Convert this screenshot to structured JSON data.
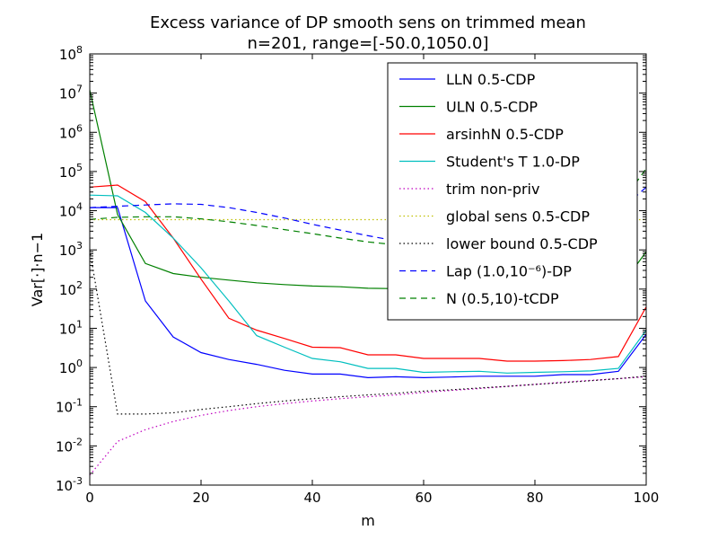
{
  "chart_data": {
    "type": "line",
    "title": "Excess variance of DP smooth sens on trimmed mean",
    "subtitle": "n=201, range=[-50.0,1050.0]",
    "xlabel": "m",
    "ylabel": "Var[·]·n−1",
    "xlim": [
      0,
      100
    ],
    "ylim": [
      0.001,
      100000000
    ],
    "yscale": "log",
    "grid": false,
    "legend_position": "top-right",
    "x_ticks": [
      "0",
      "20",
      "40",
      "60",
      "80",
      "100"
    ],
    "y_ticks": [
      {
        "base": "10",
        "exp": "-3"
      },
      {
        "base": "10",
        "exp": "-2"
      },
      {
        "base": "10",
        "exp": "-1"
      },
      {
        "base": "10",
        "exp": "0"
      },
      {
        "base": "10",
        "exp": "1"
      },
      {
        "base": "10",
        "exp": "2"
      },
      {
        "base": "10",
        "exp": "3"
      },
      {
        "base": "10",
        "exp": "4"
      },
      {
        "base": "10",
        "exp": "5"
      },
      {
        "base": "10",
        "exp": "6"
      },
      {
        "base": "10",
        "exp": "7"
      },
      {
        "base": "10",
        "exp": "8"
      }
    ],
    "x": [
      0,
      5,
      10,
      15,
      20,
      25,
      30,
      35,
      40,
      45,
      50,
      55,
      60,
      65,
      70,
      75,
      80,
      85,
      90,
      95,
      100
    ],
    "series": [
      {
        "name": "LLN 0.5-CDP",
        "color": "#0000ff",
        "style": "solid",
        "values": [
          12000,
          12000,
          50,
          6,
          2.4,
          1.6,
          1.2,
          0.85,
          0.68,
          0.68,
          0.55,
          0.58,
          0.55,
          0.57,
          0.6,
          0.6,
          0.6,
          0.66,
          0.66,
          0.8,
          7
        ]
      },
      {
        "name": "ULN 0.5-CDP",
        "color": "#008000",
        "style": "solid",
        "values": [
          12000000,
          8000,
          450,
          250,
          200,
          170,
          145,
          130,
          120,
          115,
          105,
          103,
          100,
          98,
          96,
          95,
          94,
          94,
          95,
          97,
          900
        ]
      },
      {
        "name": "arsinhN 0.5-CDP",
        "color": "#ff0000",
        "style": "solid",
        "values": [
          40000,
          45000,
          17000,
          2000,
          180,
          18,
          9,
          5.5,
          3.3,
          3.2,
          2.1,
          2.1,
          1.7,
          1.7,
          1.7,
          1.45,
          1.45,
          1.5,
          1.6,
          1.9,
          35
        ]
      },
      {
        "name": "Student's T 1.0-DP",
        "color": "#00bfbf",
        "style": "solid",
        "values": [
          25000,
          24000,
          9000,
          2000,
          350,
          50,
          6.5,
          3.3,
          1.7,
          1.4,
          0.95,
          0.95,
          0.75,
          0.78,
          0.8,
          0.72,
          0.75,
          0.78,
          0.82,
          0.95,
          9
        ]
      },
      {
        "name": "trim non-priv",
        "color": "#bf00bf",
        "style": "dotted",
        "values": [
          0.0018,
          0.013,
          0.026,
          0.042,
          0.06,
          0.08,
          0.1,
          0.12,
          0.14,
          0.16,
          0.18,
          0.2,
          0.23,
          0.26,
          0.29,
          0.33,
          0.37,
          0.42,
          0.47,
          0.52,
          0.58
        ]
      },
      {
        "name": "global sens 0.5-CDP",
        "color": "#bfbf00",
        "style": "dotted",
        "values": [
          5900,
          5900,
          5900,
          5900,
          5900,
          5900,
          5900,
          5900,
          5900,
          5900,
          5900,
          5900,
          5900,
          5900,
          5900,
          5900,
          5900,
          5900,
          5900,
          5900,
          5900
        ]
      },
      {
        "name": "lower bound 0.5-CDP",
        "color": "#000000",
        "style": "dotted",
        "values": [
          1000,
          0.065,
          0.065,
          0.07,
          0.085,
          0.1,
          0.12,
          0.14,
          0.16,
          0.18,
          0.2,
          0.22,
          0.25,
          0.27,
          0.3,
          0.33,
          0.37,
          0.41,
          0.46,
          0.52,
          0.6
        ]
      },
      {
        "name": "Lap (1.0,10⁻⁶)-DP",
        "color": "#0000ff",
        "style": "dashed",
        "values": [
          12000,
          13000,
          14000,
          15000,
          14500,
          12000,
          9000,
          6500,
          4500,
          3200,
          2300,
          1700,
          1300,
          1100,
          1000,
          1100,
          1300,
          2000,
          3500,
          9000,
          40000
        ]
      },
      {
        "name": "N (0.5,10)-tCDP",
        "color": "#008000",
        "style": "dashed",
        "values": [
          6000,
          6800,
          7000,
          7000,
          6200,
          5200,
          4200,
          3300,
          2600,
          2000,
          1600,
          1350,
          1150,
          1050,
          1000,
          1050,
          1200,
          1700,
          3000,
          12000,
          120000
        ]
      }
    ]
  }
}
